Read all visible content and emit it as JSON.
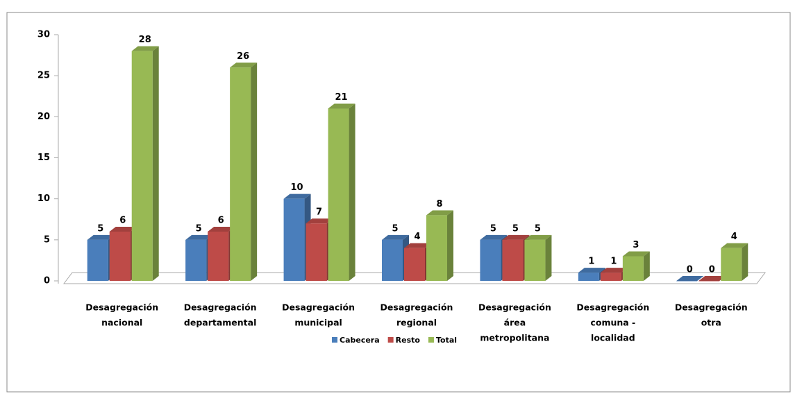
{
  "chart_data": {
    "type": "bar3d",
    "categories": [
      [
        "Desagregación",
        "nacional"
      ],
      [
        "Desagregación",
        "departamental"
      ],
      [
        "Desagregación",
        "municipal"
      ],
      [
        "Desagregación",
        "regional"
      ],
      [
        "Desagregación",
        "área",
        "metropolitana"
      ],
      [
        "Desagregación",
        "comuna -",
        "localidad"
      ],
      [
        "Desagregación",
        "otra"
      ]
    ],
    "series": [
      {
        "name": "Cabecera",
        "color": "#4a7ebb",
        "values": [
          5,
          5,
          10,
          5,
          5,
          1,
          0
        ]
      },
      {
        "name": "Resto",
        "color": "#be4b48",
        "values": [
          6,
          6,
          7,
          4,
          5,
          1,
          0
        ]
      },
      {
        "name": "Total",
        "color": "#98b954",
        "values": [
          28,
          26,
          21,
          8,
          5,
          3,
          4
        ]
      }
    ],
    "ylim": [
      0,
      30
    ],
    "yticks": [
      0,
      5,
      10,
      15,
      20,
      25,
      30
    ],
    "legend": "bottom"
  }
}
